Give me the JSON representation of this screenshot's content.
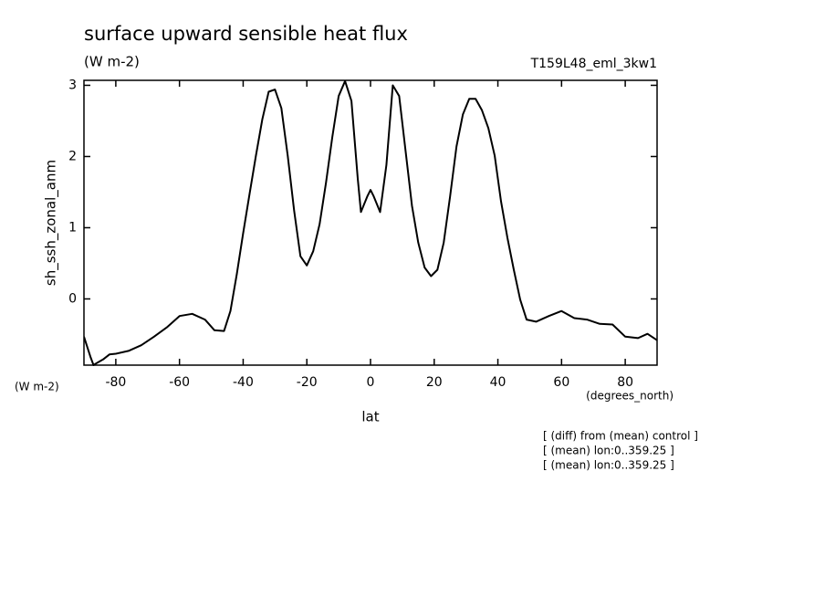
{
  "chart_data": {
    "type": "line",
    "title": "surface upward sensible heat flux",
    "subtitle": "(W m-2)",
    "run_label": "T159L48_eml_3kw1",
    "y_label": "sh_ssh_zonal_anm",
    "y_unit": "(W m-2)",
    "x_unit": "(degrees_north)",
    "x_label": "lat",
    "notes": [
      "[ (diff) from (mean) control ]",
      "[ (mean) lon:0..359.25 ]",
      "[ (mean) lon:0..359.25 ]"
    ],
    "xlim": [
      -90,
      90
    ],
    "ylim": [
      -0.93,
      3.07
    ],
    "xticks": [
      -80,
      -60,
      -40,
      -20,
      0,
      20,
      40,
      60,
      80
    ],
    "yticks": [
      0,
      1,
      2,
      3
    ],
    "grid": false,
    "series": [
      {
        "name": "sh_ssh_zonal_anm",
        "color": "#000000",
        "x": [
          -90,
          -88,
          -87,
          -86,
          -84,
          -82,
          -80,
          -76,
          -72,
          -68,
          -64,
          -60,
          -56,
          -52,
          -49,
          -46,
          -44,
          -42,
          -40,
          -38,
          -36,
          -34,
          -32,
          -30,
          -28,
          -26,
          -24,
          -22,
          -20,
          -18,
          -16,
          -14,
          -12,
          -10,
          -8,
          -6,
          -4,
          -3,
          -1,
          0,
          1,
          3,
          5,
          7,
          9,
          11,
          13,
          15,
          17,
          19,
          21,
          23,
          25,
          27,
          29,
          31,
          33,
          35,
          37,
          39,
          41,
          43,
          45,
          47,
          49,
          52,
          56,
          60,
          64,
          68,
          72,
          76,
          80,
          84,
          87,
          90
        ],
        "values": [
          -0.53,
          -0.81,
          -0.93,
          -0.9,
          -0.85,
          -0.78,
          -0.77,
          -0.73,
          -0.65,
          -0.53,
          -0.4,
          -0.24,
          -0.21,
          -0.29,
          -0.44,
          -0.45,
          -0.17,
          0.35,
          0.92,
          1.47,
          2.01,
          2.52,
          2.91,
          2.94,
          2.68,
          2.01,
          1.24,
          0.6,
          0.47,
          0.67,
          1.05,
          1.63,
          2.27,
          2.85,
          3.06,
          2.78,
          1.69,
          1.22,
          1.44,
          1.53,
          1.44,
          1.22,
          1.88,
          3.0,
          2.85,
          2.08,
          1.31,
          0.79,
          0.44,
          0.32,
          0.41,
          0.79,
          1.44,
          2.14,
          2.59,
          2.81,
          2.81,
          2.65,
          2.4,
          2.01,
          1.37,
          0.86,
          0.41,
          -0.01,
          -0.29,
          -0.32,
          -0.24,
          -0.17,
          -0.27,
          -0.29,
          -0.35,
          -0.36,
          -0.53,
          -0.55,
          -0.49,
          -0.58
        ]
      }
    ]
  }
}
